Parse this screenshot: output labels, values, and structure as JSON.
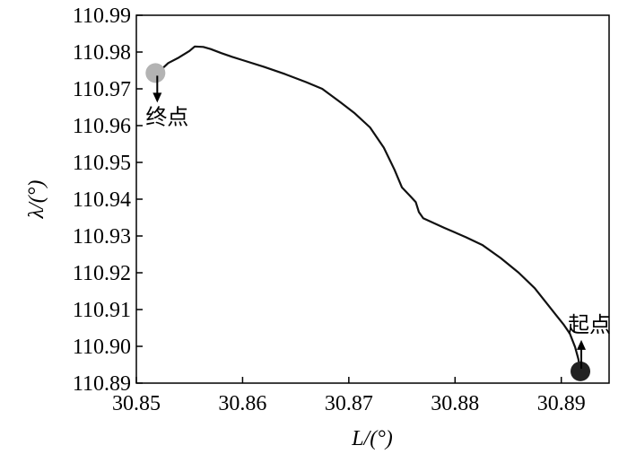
{
  "chart_data": {
    "type": "line",
    "title": "",
    "xlabel": "L/(°)",
    "ylabel": "λ/(°)",
    "xlim": [
      30.85,
      30.8945
    ],
    "ylim": [
      110.89,
      110.99
    ],
    "x_ticks": [
      "30.85",
      "30.86",
      "30.87",
      "30.88",
      "30.89"
    ],
    "y_ticks": [
      "110.89",
      "110.90",
      "110.91",
      "110.92",
      "110.93",
      "110.94",
      "110.95",
      "110.96",
      "110.97",
      "110.98",
      "110.99"
    ],
    "grid": false,
    "series": [
      {
        "color": "#111111",
        "points": [
          [
            30.8518,
            110.9738
          ],
          [
            30.853,
            110.977
          ],
          [
            30.854,
            110.9785
          ],
          [
            30.855,
            110.9803
          ],
          [
            30.8555,
            110.9815
          ],
          [
            30.8563,
            110.9814
          ],
          [
            30.857,
            110.9808
          ],
          [
            30.858,
            110.9797
          ],
          [
            30.859,
            110.9787
          ],
          [
            30.86,
            110.9778
          ],
          [
            30.862,
            110.976
          ],
          [
            30.864,
            110.974
          ],
          [
            30.866,
            110.9718
          ],
          [
            30.8675,
            110.97
          ],
          [
            30.869,
            110.9668
          ],
          [
            30.8705,
            110.9635
          ],
          [
            30.872,
            110.9595
          ],
          [
            30.8733,
            110.954
          ],
          [
            30.8743,
            110.948
          ],
          [
            30.875,
            110.9432
          ],
          [
            30.8758,
            110.9408
          ],
          [
            30.8763,
            110.9392
          ],
          [
            30.8766,
            110.9365
          ],
          [
            30.877,
            110.9348
          ],
          [
            30.879,
            110.9322
          ],
          [
            30.881,
            110.9297
          ],
          [
            30.8826,
            110.9275
          ],
          [
            30.8843,
            110.924
          ],
          [
            30.886,
            110.92
          ],
          [
            30.8875,
            110.9158
          ],
          [
            30.8886,
            110.9118
          ],
          [
            30.8895,
            110.9085
          ],
          [
            30.8902,
            110.906
          ],
          [
            30.8908,
            110.9035
          ],
          [
            30.8913,
            110.8998
          ],
          [
            30.8916,
            110.8966
          ],
          [
            30.8918,
            110.8935
          ]
        ]
      }
    ],
    "markers": [
      {
        "label": "终点",
        "x": 30.8518,
        "y": 110.9743,
        "color": "#b3b3b3",
        "arrow": "down"
      },
      {
        "label": "起点",
        "x": 30.8918,
        "y": 110.8932,
        "color": "#222222",
        "arrow": "up"
      }
    ]
  }
}
